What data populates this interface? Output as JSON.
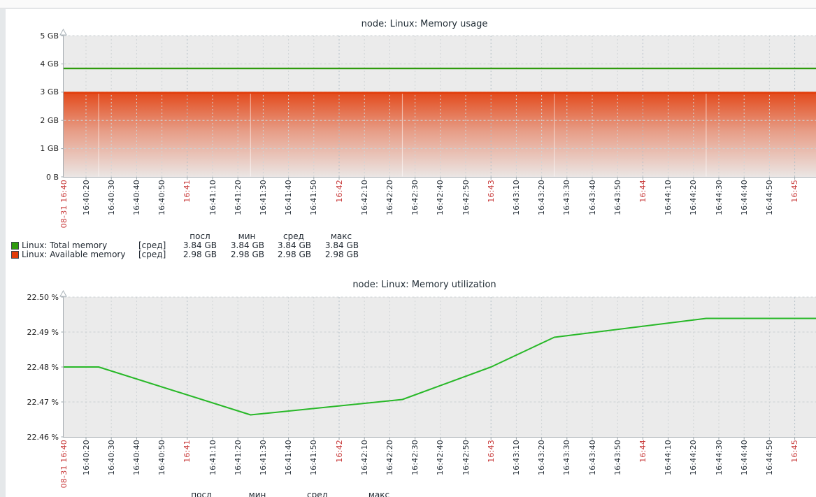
{
  "page": {
    "background_color": "#e5e8ea",
    "panel_color": "#ffffff",
    "red_label_color": "#c83a3a"
  },
  "chart_data": [
    {
      "type": "area",
      "title": "node: Linux: Memory usage",
      "y_unit": "GB",
      "ylim": [
        0,
        5
      ],
      "y_tick_labels": [
        "5 GB",
        "4 GB",
        "3 GB",
        "2 GB",
        "1 GB",
        "0 B"
      ],
      "x_start_label": "08-31 16:40",
      "x_tick_labels": [
        "16:40:20",
        "16:40:30",
        "16:40:40",
        "16:40:50",
        "16:41",
        "16:41:10",
        "16:41:20",
        "16:41:30",
        "16:41:40",
        "16:41:50",
        "16:42",
        "16:42:10",
        "16:42:20",
        "16:42:30",
        "16:42:40",
        "16:42:50",
        "16:43",
        "16:43:10",
        "16:43:20",
        "16:43:30",
        "16:43:40",
        "16:43:50",
        "16:44",
        "16:44:10",
        "16:44:20",
        "16:44:30",
        "16:44:40",
        "16:44:50",
        "16:45"
      ],
      "red_ticks": [
        "16:41",
        "16:42",
        "16:43",
        "16:44",
        "16:45"
      ],
      "grid": true,
      "legend_position": "bottom",
      "series": [
        {
          "name": "Linux: Total memory",
          "type": "line",
          "color": "#2e9b0d",
          "constant_value_gb": 3.84
        },
        {
          "name": "Linux: Available memory",
          "type": "gradient-area",
          "color": "#e23c0a",
          "constant_value_gb": 2.98,
          "fill_seam_times": [
            "16:40:25",
            "16:41:25",
            "16:42:25",
            "16:43:25",
            "16:44:25"
          ]
        }
      ],
      "legend": {
        "stat_headers": [
          "посл",
          "мин",
          "сред",
          "макс"
        ],
        "rows": [
          {
            "label": "Linux: Total memory",
            "func": "[сред]",
            "color": "#2e9b0d",
            "stats": [
              "3.84 GB",
              "3.84 GB",
              "3.84 GB",
              "3.84 GB"
            ]
          },
          {
            "label": "Linux: Available memory",
            "func": "[сред]",
            "color": "#e23c0a",
            "stats": [
              "2.98 GB",
              "2.98 GB",
              "2.98 GB",
              "2.98 GB"
            ]
          }
        ]
      }
    },
    {
      "type": "line",
      "title": "node: Linux: Memory utilization",
      "y_unit": "%",
      "ylim": [
        22.46,
        22.5
      ],
      "y_tick_labels": [
        "22.50 %",
        "22.49 %",
        "22.48 %",
        "22.47 %",
        "22.46 %"
      ],
      "x_start_label": "08-31 16:40",
      "x_tick_labels": [
        "16:40:20",
        "16:40:30",
        "16:40:40",
        "16:40:50",
        "16:41",
        "16:41:10",
        "16:41:20",
        "16:41:30",
        "16:41:40",
        "16:41:50",
        "16:42",
        "16:42:10",
        "16:42:20",
        "16:42:30",
        "16:42:40",
        "16:42:50",
        "16:43",
        "16:43:10",
        "16:43:20",
        "16:43:30",
        "16:43:40",
        "16:43:50",
        "16:44",
        "16:44:10",
        "16:44:20",
        "16:44:30",
        "16:44:40",
        "16:44:50",
        "16:45"
      ],
      "red_ticks": [
        "16:41",
        "16:42",
        "16:43",
        "16:44",
        "16:45"
      ],
      "grid": true,
      "legend_position": "bottom",
      "series": [
        {
          "name": "Linux: Memory utilization",
          "type": "line",
          "color": "#28b828",
          "points": [
            [
              "16:40:11",
              22.48
            ],
            [
              "16:40:25",
              22.48
            ],
            [
              "16:41:25",
              22.4663
            ],
            [
              "16:42:25",
              22.4707
            ],
            [
              "16:43:00",
              22.48
            ],
            [
              "16:43:25",
              22.4885
            ],
            [
              "16:44:25",
              22.4939
            ],
            [
              "16:45:13",
              22.4939
            ]
          ]
        }
      ],
      "legend": {
        "stat_headers": [
          "посл",
          "мин",
          "сред",
          "макс"
        ],
        "rows": []
      }
    }
  ]
}
